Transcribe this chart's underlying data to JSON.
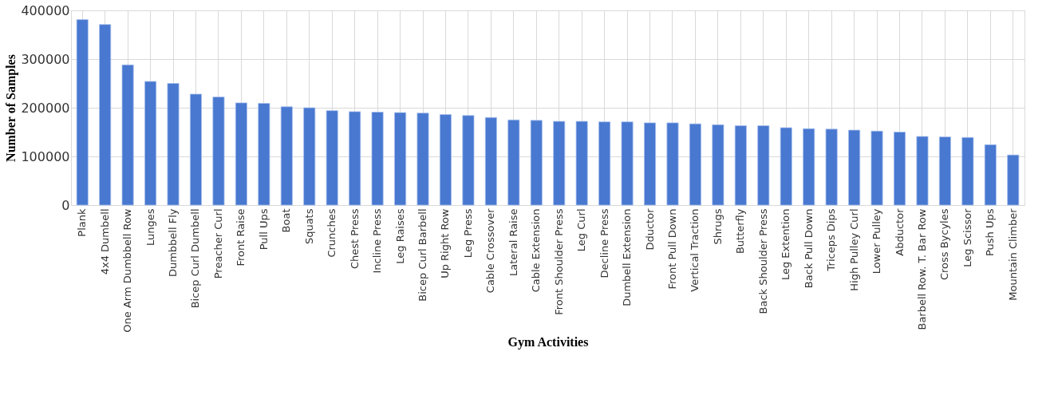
{
  "chart_data": {
    "type": "bar",
    "xlabel": "Gym Activities",
    "ylabel": "Number of Samples",
    "categories": [
      "Plank",
      "4x4 Dumbell",
      "One Arm Dumbbell Row",
      "Lunges",
      "Dumbbell Fly",
      "Bicep Curl Dumbell",
      "Preacher Curl",
      "Front Raise",
      "Pull Ups",
      "Boat",
      "Squats",
      "Crunches",
      "Chest Press",
      "Incline Press",
      "Leg Raises",
      "Bicep Curl Barbell",
      "Up Right Row",
      "Leg Press",
      "Cable Crossover",
      "Lateral Raise",
      "Cable Extension",
      "Front Shoulder Press",
      "Leg Curl",
      "Decline Press",
      "Dumbell Extension",
      "Dductor",
      "Front Pull Down",
      "Vertical Traction",
      "Shrugs",
      "Butterfly",
      "Back Shoulder Press",
      "Leg Extention",
      "Back Pull Down",
      "Triceps Dips",
      "High Pulley Curl",
      "Lower Pulley",
      "Abductor",
      "Barbell Row. T. Bar Row",
      "Cross Bycyles",
      "Leg Scissor",
      "Push Ups",
      "Mountain Climber"
    ],
    "values": [
      381000,
      371000,
      288000,
      254000,
      250000,
      228000,
      222000,
      210000,
      209000,
      202000,
      200000,
      194000,
      192000,
      191000,
      190000,
      189000,
      186000,
      184000,
      180000,
      175000,
      174000,
      172000,
      172000,
      171000,
      171000,
      169000,
      169000,
      167000,
      165000,
      163000,
      163000,
      159000,
      157000,
      156000,
      154000,
      152000,
      150000,
      141000,
      140000,
      139000,
      124000,
      103000
    ],
    "color": "#4878d0",
    "ylim": [
      0,
      400000
    ],
    "yticks": [
      0,
      100000,
      200000,
      300000,
      400000
    ],
    "grid": true
  }
}
